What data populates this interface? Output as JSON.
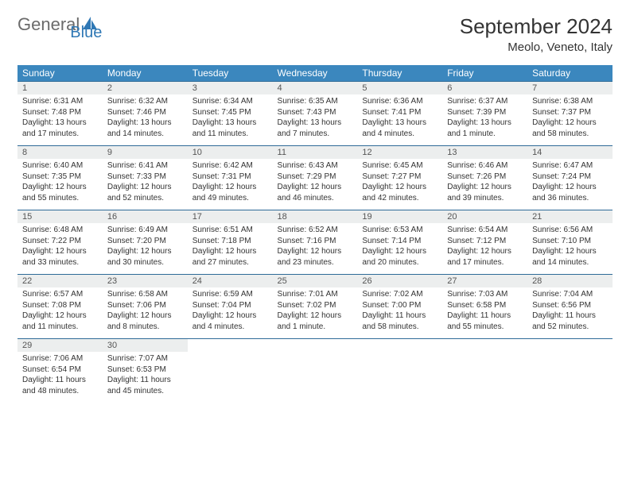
{
  "brand": {
    "name1": "General",
    "name2": "Blue"
  },
  "title": "September 2024",
  "location": "Meolo, Veneto, Italy",
  "colors": {
    "header_bg": "#3b87be",
    "header_text": "#ffffff",
    "numrow_bg": "#eceeee",
    "border": "#2f6b98",
    "logo_gray": "#6b6b6b",
    "logo_blue": "#2f78b5"
  },
  "weekdays": [
    "Sunday",
    "Monday",
    "Tuesday",
    "Wednesday",
    "Thursday",
    "Friday",
    "Saturday"
  ],
  "weeks": [
    [
      {
        "n": "1",
        "sr": "Sunrise: 6:31 AM",
        "ss": "Sunset: 7:48 PM",
        "dl": "Daylight: 13 hours and 17 minutes."
      },
      {
        "n": "2",
        "sr": "Sunrise: 6:32 AM",
        "ss": "Sunset: 7:46 PM",
        "dl": "Daylight: 13 hours and 14 minutes."
      },
      {
        "n": "3",
        "sr": "Sunrise: 6:34 AM",
        "ss": "Sunset: 7:45 PM",
        "dl": "Daylight: 13 hours and 11 minutes."
      },
      {
        "n": "4",
        "sr": "Sunrise: 6:35 AM",
        "ss": "Sunset: 7:43 PM",
        "dl": "Daylight: 13 hours and 7 minutes."
      },
      {
        "n": "5",
        "sr": "Sunrise: 6:36 AM",
        "ss": "Sunset: 7:41 PM",
        "dl": "Daylight: 13 hours and 4 minutes."
      },
      {
        "n": "6",
        "sr": "Sunrise: 6:37 AM",
        "ss": "Sunset: 7:39 PM",
        "dl": "Daylight: 13 hours and 1 minute."
      },
      {
        "n": "7",
        "sr": "Sunrise: 6:38 AM",
        "ss": "Sunset: 7:37 PM",
        "dl": "Daylight: 12 hours and 58 minutes."
      }
    ],
    [
      {
        "n": "8",
        "sr": "Sunrise: 6:40 AM",
        "ss": "Sunset: 7:35 PM",
        "dl": "Daylight: 12 hours and 55 minutes."
      },
      {
        "n": "9",
        "sr": "Sunrise: 6:41 AM",
        "ss": "Sunset: 7:33 PM",
        "dl": "Daylight: 12 hours and 52 minutes."
      },
      {
        "n": "10",
        "sr": "Sunrise: 6:42 AM",
        "ss": "Sunset: 7:31 PM",
        "dl": "Daylight: 12 hours and 49 minutes."
      },
      {
        "n": "11",
        "sr": "Sunrise: 6:43 AM",
        "ss": "Sunset: 7:29 PM",
        "dl": "Daylight: 12 hours and 46 minutes."
      },
      {
        "n": "12",
        "sr": "Sunrise: 6:45 AM",
        "ss": "Sunset: 7:27 PM",
        "dl": "Daylight: 12 hours and 42 minutes."
      },
      {
        "n": "13",
        "sr": "Sunrise: 6:46 AM",
        "ss": "Sunset: 7:26 PM",
        "dl": "Daylight: 12 hours and 39 minutes."
      },
      {
        "n": "14",
        "sr": "Sunrise: 6:47 AM",
        "ss": "Sunset: 7:24 PM",
        "dl": "Daylight: 12 hours and 36 minutes."
      }
    ],
    [
      {
        "n": "15",
        "sr": "Sunrise: 6:48 AM",
        "ss": "Sunset: 7:22 PM",
        "dl": "Daylight: 12 hours and 33 minutes."
      },
      {
        "n": "16",
        "sr": "Sunrise: 6:49 AM",
        "ss": "Sunset: 7:20 PM",
        "dl": "Daylight: 12 hours and 30 minutes."
      },
      {
        "n": "17",
        "sr": "Sunrise: 6:51 AM",
        "ss": "Sunset: 7:18 PM",
        "dl": "Daylight: 12 hours and 27 minutes."
      },
      {
        "n": "18",
        "sr": "Sunrise: 6:52 AM",
        "ss": "Sunset: 7:16 PM",
        "dl": "Daylight: 12 hours and 23 minutes."
      },
      {
        "n": "19",
        "sr": "Sunrise: 6:53 AM",
        "ss": "Sunset: 7:14 PM",
        "dl": "Daylight: 12 hours and 20 minutes."
      },
      {
        "n": "20",
        "sr": "Sunrise: 6:54 AM",
        "ss": "Sunset: 7:12 PM",
        "dl": "Daylight: 12 hours and 17 minutes."
      },
      {
        "n": "21",
        "sr": "Sunrise: 6:56 AM",
        "ss": "Sunset: 7:10 PM",
        "dl": "Daylight: 12 hours and 14 minutes."
      }
    ],
    [
      {
        "n": "22",
        "sr": "Sunrise: 6:57 AM",
        "ss": "Sunset: 7:08 PM",
        "dl": "Daylight: 12 hours and 11 minutes."
      },
      {
        "n": "23",
        "sr": "Sunrise: 6:58 AM",
        "ss": "Sunset: 7:06 PM",
        "dl": "Daylight: 12 hours and 8 minutes."
      },
      {
        "n": "24",
        "sr": "Sunrise: 6:59 AM",
        "ss": "Sunset: 7:04 PM",
        "dl": "Daylight: 12 hours and 4 minutes."
      },
      {
        "n": "25",
        "sr": "Sunrise: 7:01 AM",
        "ss": "Sunset: 7:02 PM",
        "dl": "Daylight: 12 hours and 1 minute."
      },
      {
        "n": "26",
        "sr": "Sunrise: 7:02 AM",
        "ss": "Sunset: 7:00 PM",
        "dl": "Daylight: 11 hours and 58 minutes."
      },
      {
        "n": "27",
        "sr": "Sunrise: 7:03 AM",
        "ss": "Sunset: 6:58 PM",
        "dl": "Daylight: 11 hours and 55 minutes."
      },
      {
        "n": "28",
        "sr": "Sunrise: 7:04 AM",
        "ss": "Sunset: 6:56 PM",
        "dl": "Daylight: 11 hours and 52 minutes."
      }
    ],
    [
      {
        "n": "29",
        "sr": "Sunrise: 7:06 AM",
        "ss": "Sunset: 6:54 PM",
        "dl": "Daylight: 11 hours and 48 minutes."
      },
      {
        "n": "30",
        "sr": "Sunrise: 7:07 AM",
        "ss": "Sunset: 6:53 PM",
        "dl": "Daylight: 11 hours and 45 minutes."
      },
      null,
      null,
      null,
      null,
      null
    ]
  ]
}
